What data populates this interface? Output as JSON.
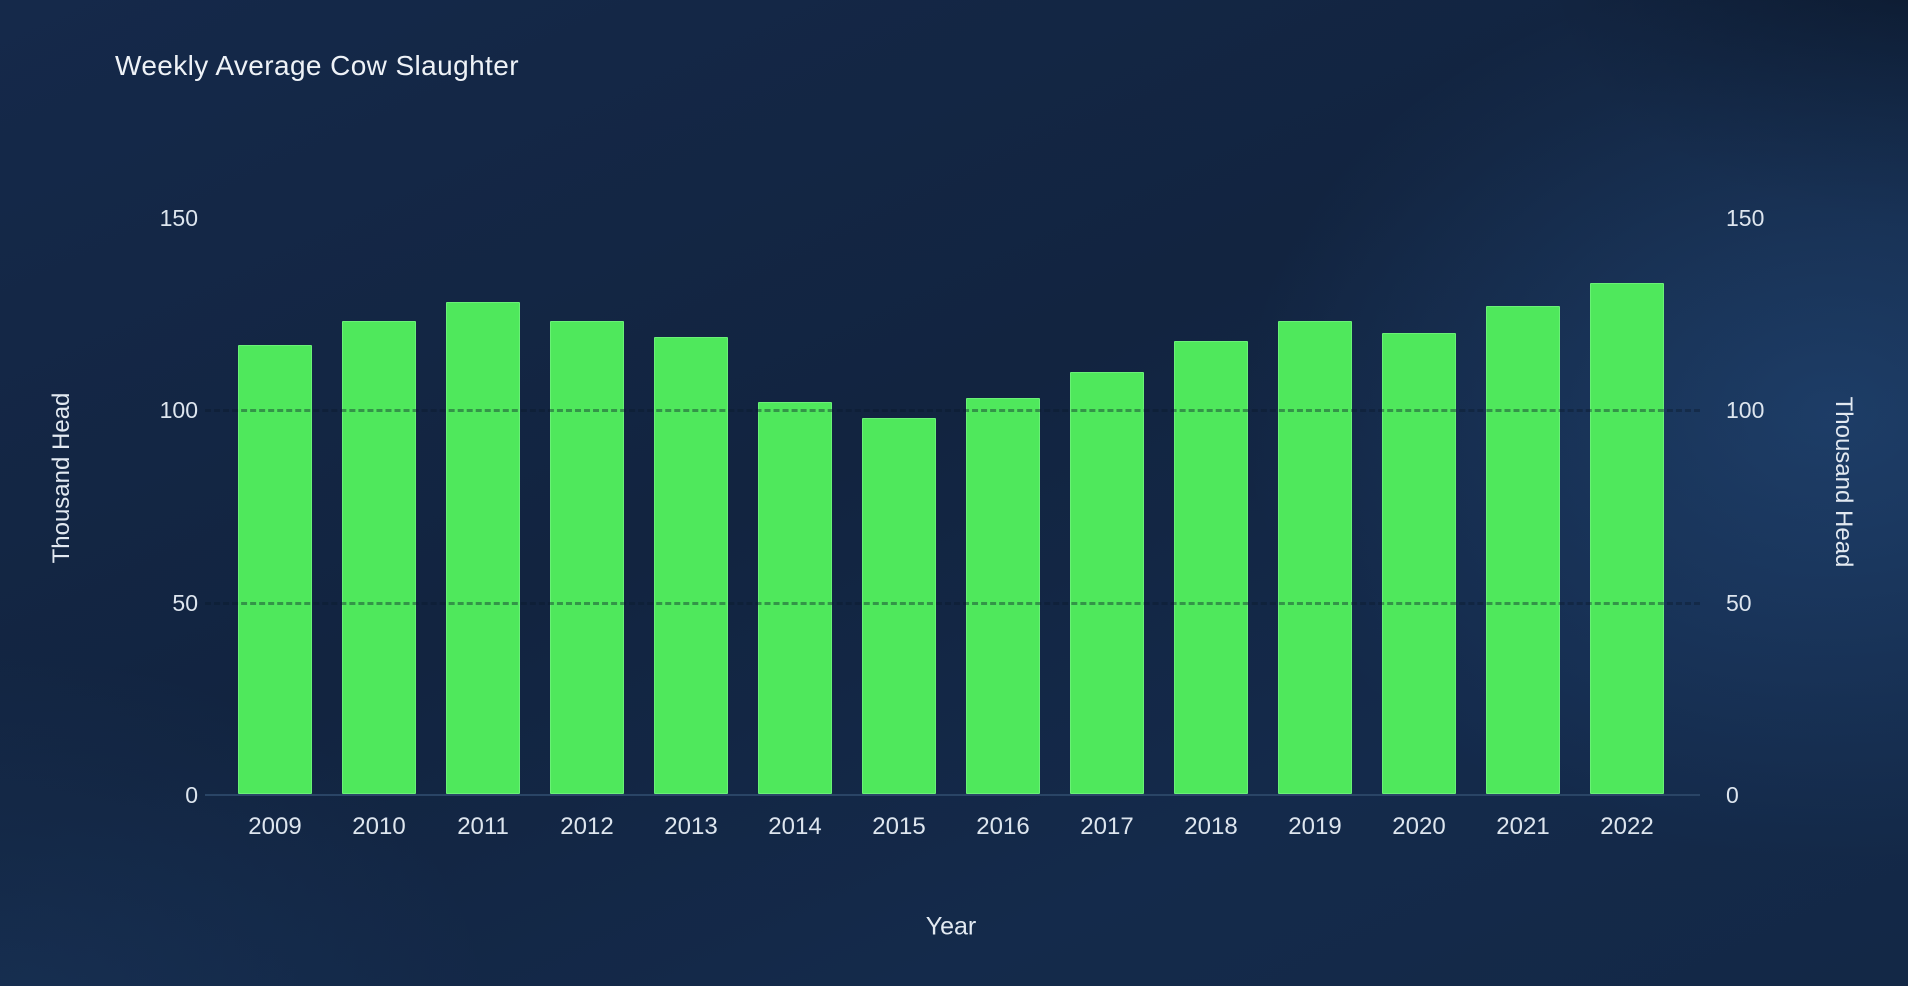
{
  "chart": {
    "title": "Weekly Average Cow Slaughter",
    "x_axis": {
      "title": "Year"
    },
    "y_axis_left": {
      "title": "Thousand Head"
    },
    "y_axis_right": {
      "title": "Thousand Head"
    }
  },
  "chart_data": {
    "type": "bar",
    "title": "Weekly Average Cow Slaughter",
    "xlabel": "Year",
    "ylabel": "Thousand Head",
    "ylabel_right": "Thousand Head",
    "categories": [
      "2009",
      "2010",
      "2011",
      "2012",
      "2013",
      "2014",
      "2015",
      "2016",
      "2017",
      "2018",
      "2019",
      "2020",
      "2021",
      "2022"
    ],
    "values": [
      117,
      123,
      128,
      123,
      119,
      102,
      98,
      103,
      110,
      118,
      123,
      120,
      127,
      133
    ],
    "ylim": [
      0,
      150
    ],
    "yticks": [
      0,
      50,
      100,
      150
    ],
    "gridline_values": [
      50,
      100
    ],
    "grid_style": "dashed",
    "legend_position": "none",
    "dual_y_axis": true,
    "colors": {
      "bar": "#4fe85c",
      "bar_edge": "#96ffa2",
      "background": "#13253f",
      "text": "#e2e9f1",
      "axis_line": "#2a4566"
    }
  }
}
